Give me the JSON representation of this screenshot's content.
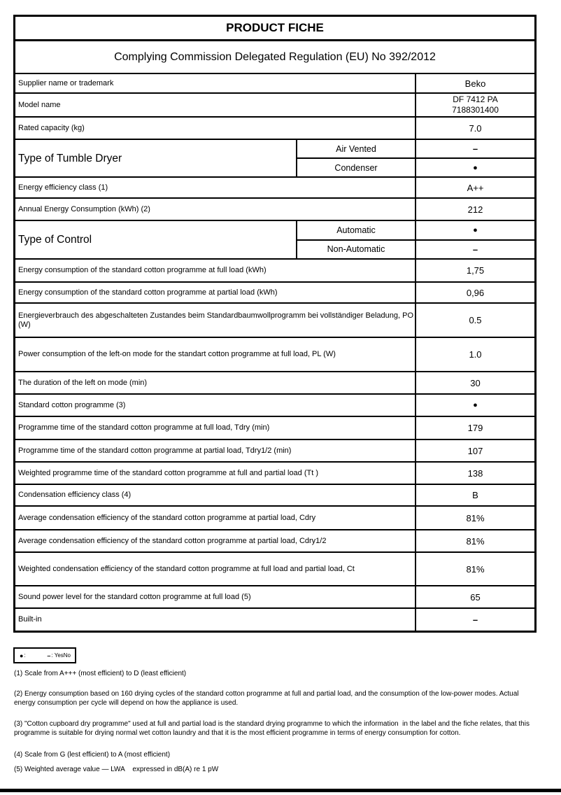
{
  "header": {
    "title": "PRODUCT FICHE",
    "subtitle": "Complying Commission Delegated Regulation (EU) No 392/2012"
  },
  "table": {
    "rows": [
      {
        "type": "simple",
        "label": "Supplier name or trademark",
        "value": "Beko",
        "h": 28
      },
      {
        "type": "simple",
        "label": "Model name",
        "value": "DF 7412 PA",
        "value2": "7188301400",
        "h": 34
      },
      {
        "type": "simple",
        "label": "Rated capacity (kg)",
        "value": "7.0",
        "h": 32
      },
      {
        "type": "group",
        "label": "Type of Tumble Dryer",
        "h": 54,
        "subs": [
          {
            "label": "Air Vented",
            "value": "–"
          },
          {
            "label": "Condenser",
            "value": "●"
          }
        ]
      },
      {
        "type": "simple",
        "label": "Energy efficiency class (1)",
        "value": "A++",
        "h": 30
      },
      {
        "type": "simple",
        "label": "Annual Energy Consumption (kWh) (2)",
        "value": "212",
        "h": 32
      },
      {
        "type": "group",
        "label": "Type of Control",
        "h": 55,
        "subs": [
          {
            "label": "Automatic",
            "value": "●"
          },
          {
            "label": "Non-Automatic",
            "value": "–"
          }
        ]
      },
      {
        "type": "simple",
        "label": "Energy consumption of the standard cotton programme at full load (kWh)",
        "value": "1,75",
        "h": 33
      },
      {
        "type": "simple",
        "label": "Energy consumption of the standard cotton programme at partial load (kWh)",
        "value": "0,96",
        "h": 30
      },
      {
        "type": "simple",
        "label": "Energieverbrauch des abgeschalteten Zustandes beim Standardbaumwollprogramm bei vollständiger Beladung, PO (W)",
        "value": "0.5",
        "h": 49
      },
      {
        "type": "simple",
        "label": "Power consumption of the left-on mode for the standart cotton programme at full load, PL (W)",
        "value": "1.0",
        "h": 49
      },
      {
        "type": "simple",
        "label": "The duration of the left on mode (min)",
        "value": "30",
        "h": 32
      },
      {
        "type": "simple",
        "label": "Standard cotton programme (3)",
        "value": "●",
        "h": 32
      },
      {
        "type": "simple",
        "label": "Programme time of the standard cotton programme at full load, Tdry (min)",
        "value": "179",
        "h": 33
      },
      {
        "type": "simple",
        "label": "Programme time of the standard cotton programme at partial load, Tdry1/2 (min)",
        "value": "107",
        "h": 32
      },
      {
        "type": "simple",
        "label": "Weighted programme time of the standard cotton programme at full and partial load (Tt )",
        "value": "138",
        "h": 32
      },
      {
        "type": "simple",
        "label": "Condensation efficiency class (4)",
        "value": "B",
        "h": 31
      },
      {
        "type": "simple",
        "label": "Average condensation efficiency of the standard cotton programme at partial load, Cdry",
        "value": "81%",
        "h": 34
      },
      {
        "type": "simple",
        "label": "Average condensation efficiency of the standard cotton programme at partial load, Cdry1/2",
        "value": "81%",
        "h": 32
      },
      {
        "type": "simple",
        "label": "Weighted condensation efficiency of the standard cotton programme at full load and partial load, Ct",
        "value": "81%",
        "h": 48
      },
      {
        "type": "simple",
        "label": "Sound power level for the standard cotton programme at full load (5)",
        "value": "65",
        "h": 32
      },
      {
        "type": "simple",
        "label": "Built-in",
        "value": "–",
        "h": 33
      }
    ]
  },
  "legend": {
    "items": [
      {
        "symbol": "●",
        "text": ":"
      },
      {
        "symbol": "–",
        "text": ": YesNo"
      }
    ]
  },
  "footnotes": [
    "(1) Scale from A+++ (most efficient) to D (least efficient)",
    "(2) Energy consumption based on 160 drying cycles of the standard cotton programme at full and partial load, and the consumption of the low-power modes. Actual energy consumption per cycle will depend on how the appliance is used.",
    "(3) \"Cotton cupboard dry programme\" used at full and partial load is the standard drying programme to which the information  in the label and the fiche relates, that this programme is suitable for drying normal wet cotton laundry and that it is the most efficient programme in terms of energy consumption for cotton.",
    "(4) Scale from G (lest efficient) to A (most efficient)",
    "(5) Weighted average value — LWA    expressed in dB(A) re 1 pW"
  ]
}
